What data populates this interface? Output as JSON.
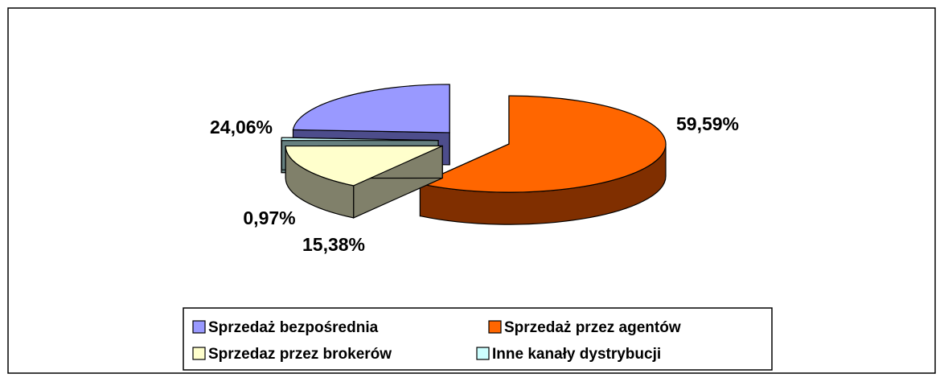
{
  "chart_data": {
    "type": "pie",
    "categories": [
      "Sprzedaż bezpośrednia",
      "Sprzedaż przez agentów",
      "Sprzedaz przez brokerów",
      "Inne kanały dystrybucji"
    ],
    "values": [
      24.06,
      59.59,
      15.38,
      0.97
    ],
    "value_labels": [
      "24,06%",
      "59,59%",
      "15,38%",
      "0,97%"
    ],
    "colors": [
      "#9999ff",
      "#ff6600",
      "#ffffcc",
      "#ccffff"
    ],
    "side_colors": [
      "#4d4d8c",
      "#802f00",
      "#80806a",
      "#668080"
    ],
    "legend": "bottom"
  }
}
